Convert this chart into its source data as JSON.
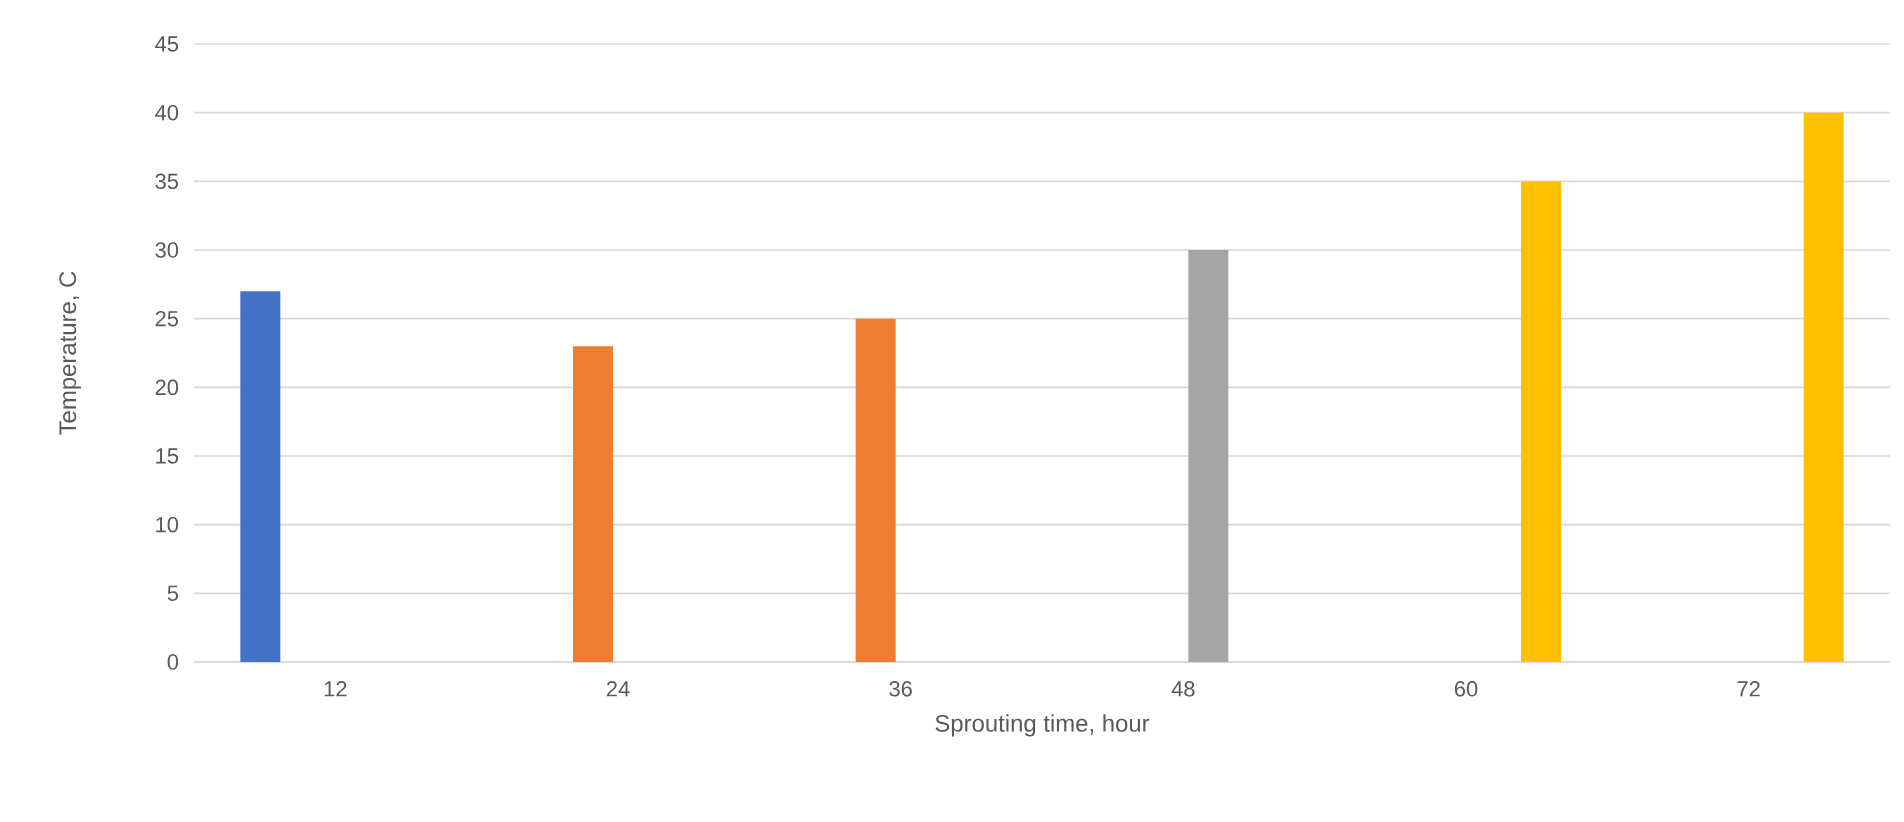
{
  "chart_data": {
    "type": "bar",
    "xlabel": "Sprouting time, hour",
    "ylabel": "Temperature, C",
    "categories": [
      "12",
      "24",
      "36",
      "48",
      "60",
      "72"
    ],
    "series": [
      {
        "color": "#4472c4",
        "values": [
          27,
          null,
          null,
          null,
          null,
          null
        ]
      },
      {
        "color": "#ed7d31",
        "values": [
          null,
          23,
          25,
          null,
          null,
          null
        ]
      },
      {
        "color": "#a5a5a5",
        "values": [
          null,
          null,
          null,
          30,
          null,
          null
        ]
      },
      {
        "color": "#ffc000",
        "values": [
          null,
          null,
          null,
          null,
          35,
          40
        ]
      }
    ],
    "ylim": [
      0,
      45
    ],
    "yticks": [
      0,
      5,
      10,
      15,
      20,
      25,
      30,
      35,
      40,
      45
    ],
    "grid": "y"
  }
}
